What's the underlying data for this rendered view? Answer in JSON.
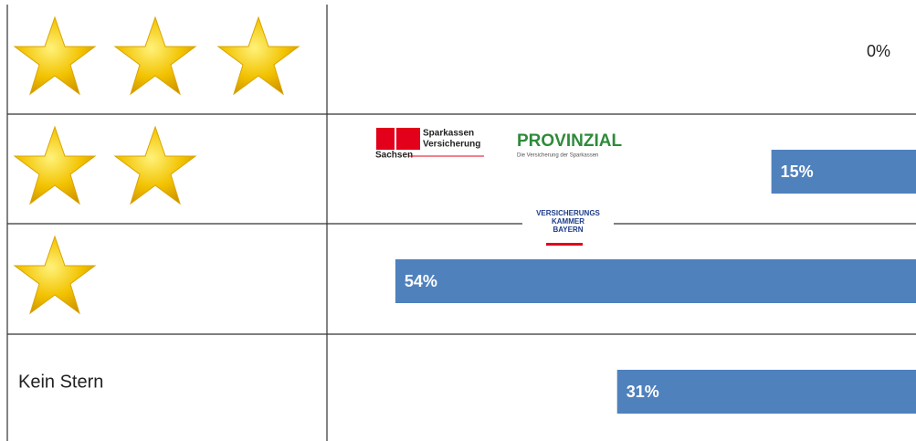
{
  "chart_data": {
    "type": "bar",
    "orientation": "horizontal",
    "categories": [
      null,
      null,
      null,
      "Kein Stern"
    ],
    "values": [
      0,
      15,
      54,
      31
    ],
    "value_labels": [
      "0%",
      "15%",
      "54%",
      "31%"
    ],
    "color": "#4f81bd",
    "xlim": [
      0,
      61
    ],
    "annotations": [
      "Sparkassen",
      "Versicherung",
      "Sachsen",
      "PROVINZIAL",
      "Die Versicherung der Sparkassen",
      "VERSICHERUNGS",
      "KAMMER",
      "BAYERN"
    ]
  }
}
